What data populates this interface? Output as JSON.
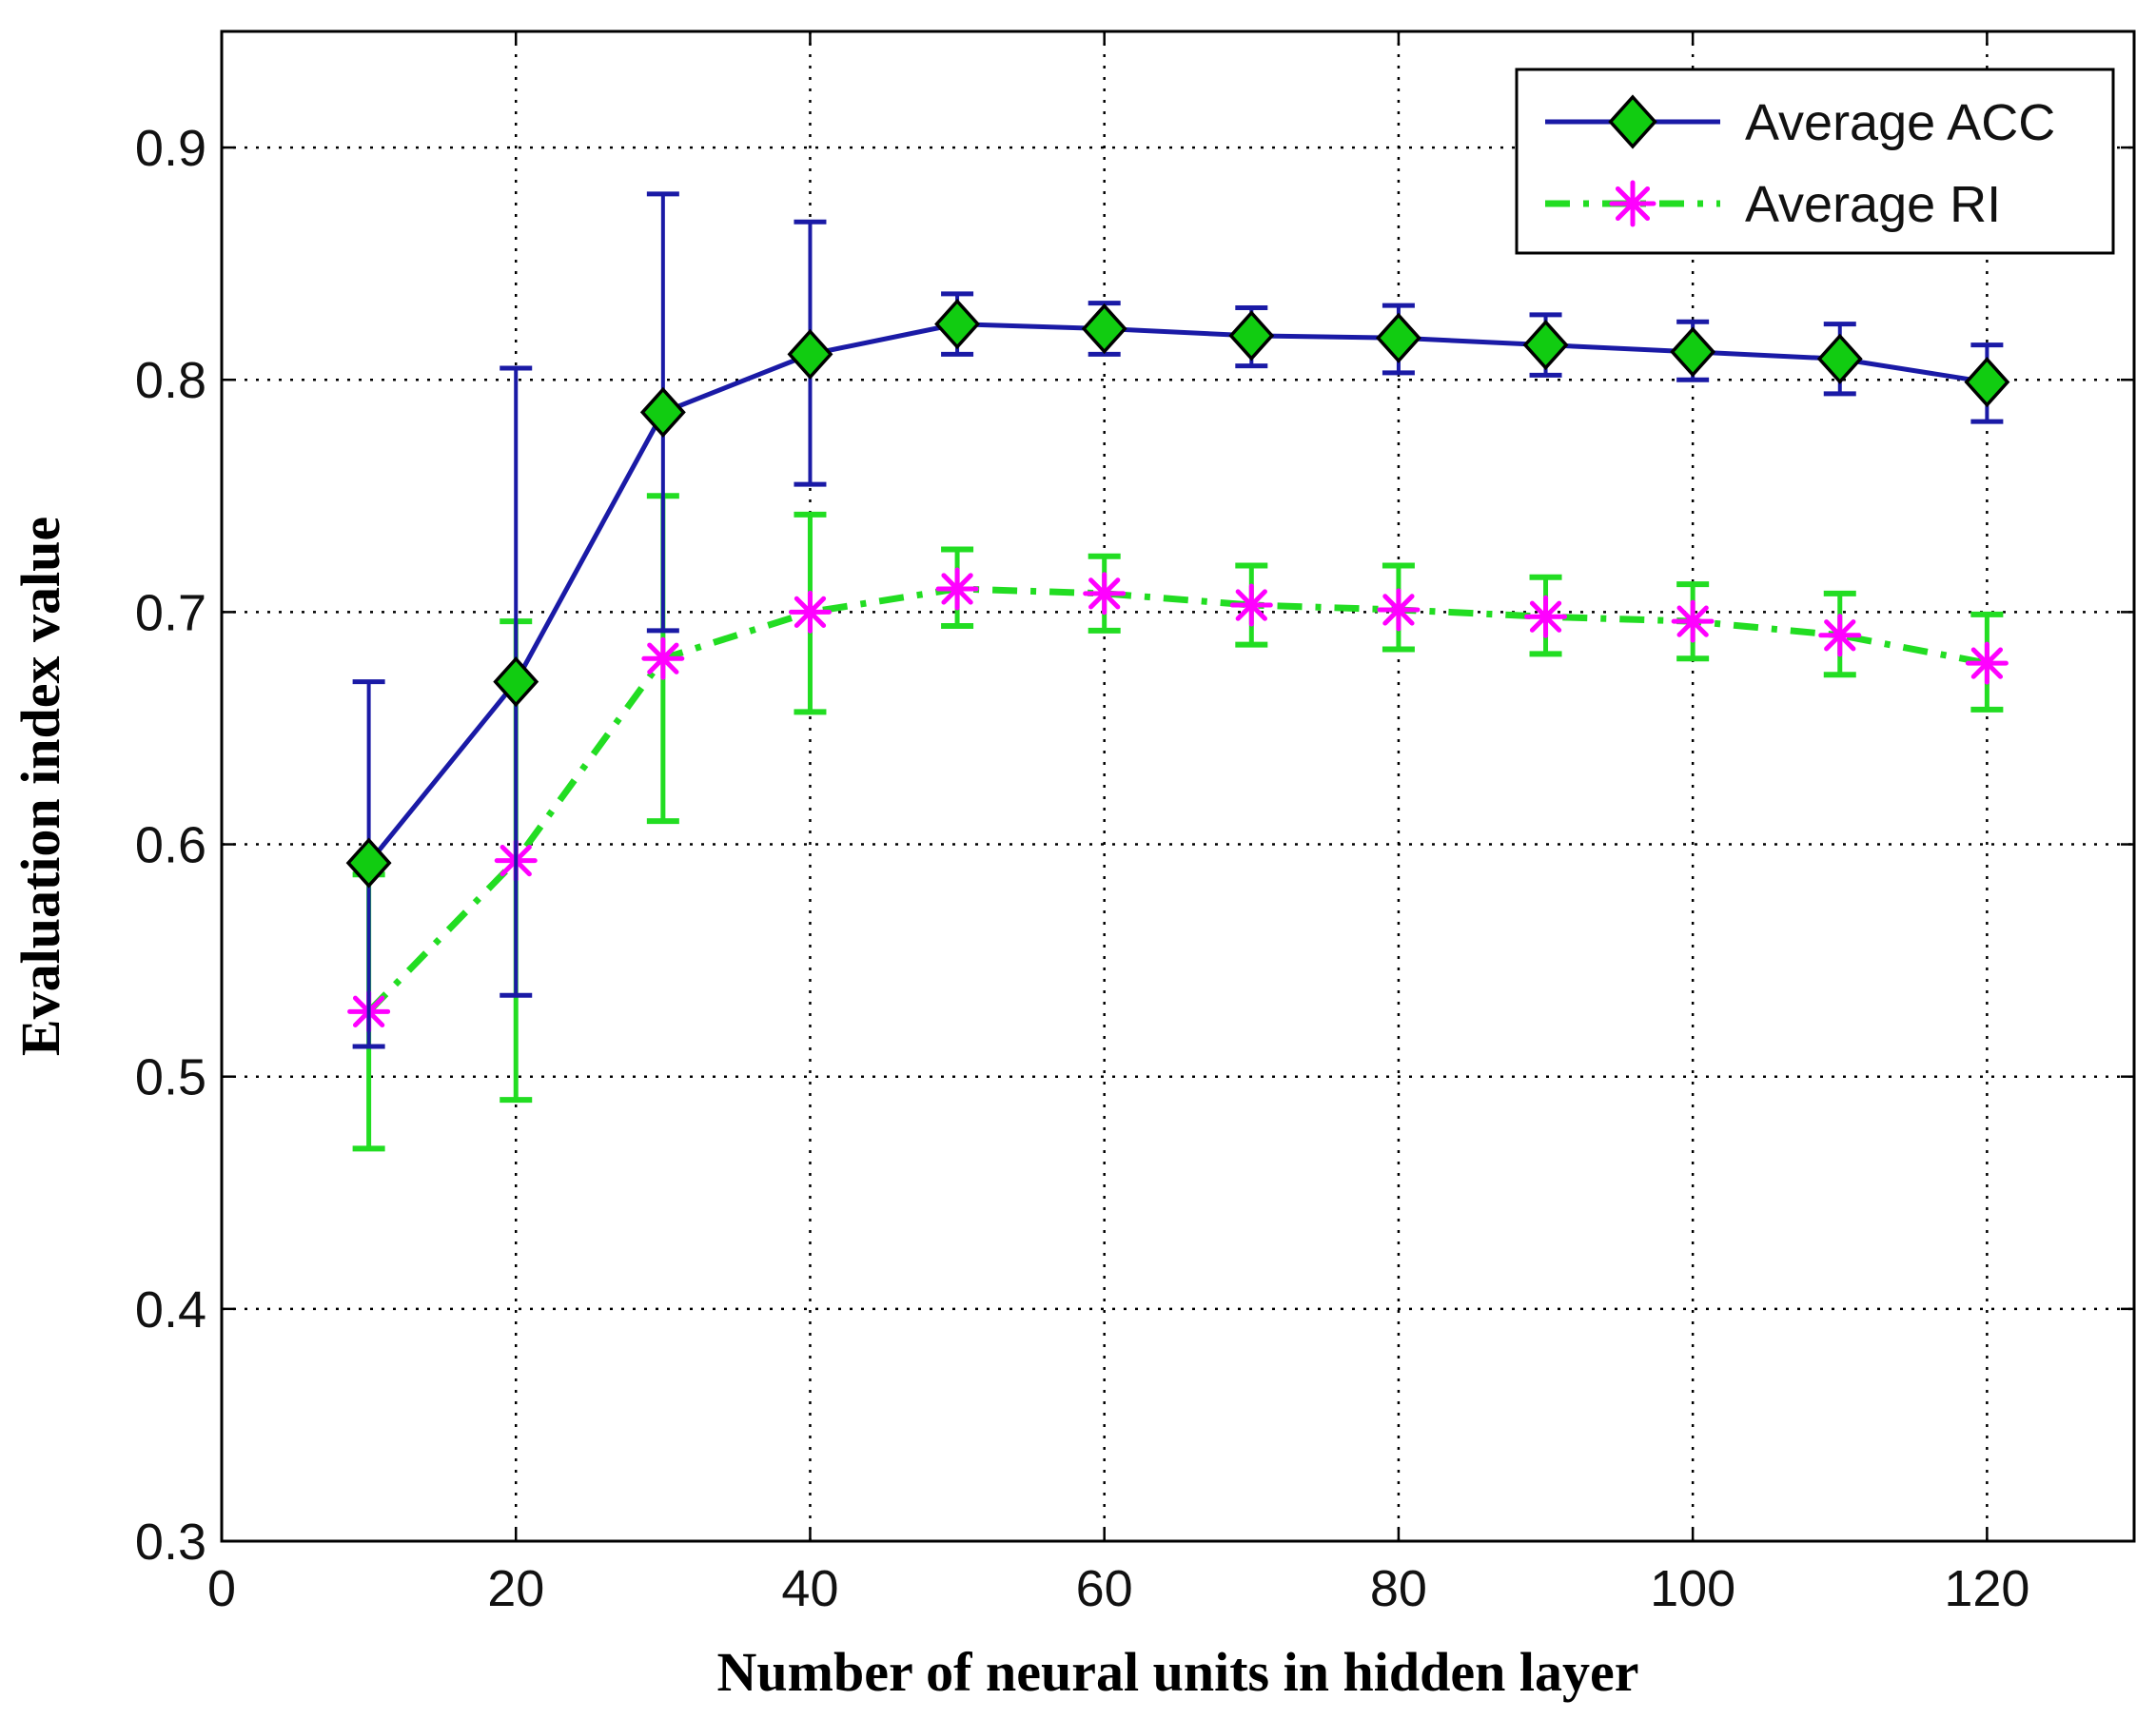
{
  "chart_data": {
    "type": "line",
    "title": "",
    "xlabel": "Number of neural units in hidden layer",
    "ylabel": "Evaluation index value",
    "xlim": [
      0,
      130
    ],
    "ylim": [
      0.3,
      0.95
    ],
    "xticks": [
      0,
      20,
      40,
      60,
      80,
      100,
      120
    ],
    "xtick_labels": [
      "0",
      "20",
      "40",
      "60",
      "80",
      "100",
      "120"
    ],
    "yticks": [
      0.3,
      0.4,
      0.5,
      0.6,
      0.7,
      0.8,
      0.9
    ],
    "ytick_labels": [
      "0.3",
      "0.4",
      "0.5",
      "0.6",
      "0.7",
      "0.8",
      "0.9"
    ],
    "grid": true,
    "legend_position": "top-right",
    "x": [
      10,
      20,
      30,
      40,
      50,
      60,
      70,
      80,
      90,
      100,
      110,
      120
    ],
    "series": [
      {
        "name": "Average ACC",
        "line_color": "#1a1aa6",
        "marker": "diamond",
        "marker_color": "#11cc11",
        "line_style": "solid",
        "values": [
          0.592,
          0.67,
          0.786,
          0.811,
          0.824,
          0.822,
          0.819,
          0.818,
          0.815,
          0.812,
          0.809,
          0.799
        ],
        "err_low": [
          0.513,
          0.535,
          0.692,
          0.755,
          0.811,
          0.811,
          0.806,
          0.803,
          0.802,
          0.8,
          0.794,
          0.782
        ],
        "err_high": [
          0.67,
          0.805,
          0.88,
          0.868,
          0.837,
          0.833,
          0.831,
          0.832,
          0.828,
          0.825,
          0.824,
          0.815
        ]
      },
      {
        "name": "Average RI",
        "line_color": "#22dd22",
        "marker": "asterisk",
        "marker_color": "#ff00ff",
        "line_style": "dash-dot",
        "values": [
          0.528,
          0.593,
          0.68,
          0.7,
          0.71,
          0.708,
          0.703,
          0.701,
          0.698,
          0.696,
          0.69,
          0.678
        ],
        "err_low": [
          0.469,
          0.49,
          0.61,
          0.657,
          0.694,
          0.692,
          0.686,
          0.684,
          0.682,
          0.68,
          0.673,
          0.658
        ],
        "err_high": [
          0.587,
          0.696,
          0.75,
          0.742,
          0.727,
          0.724,
          0.72,
          0.72,
          0.715,
          0.712,
          0.708,
          0.699
        ]
      }
    ]
  }
}
